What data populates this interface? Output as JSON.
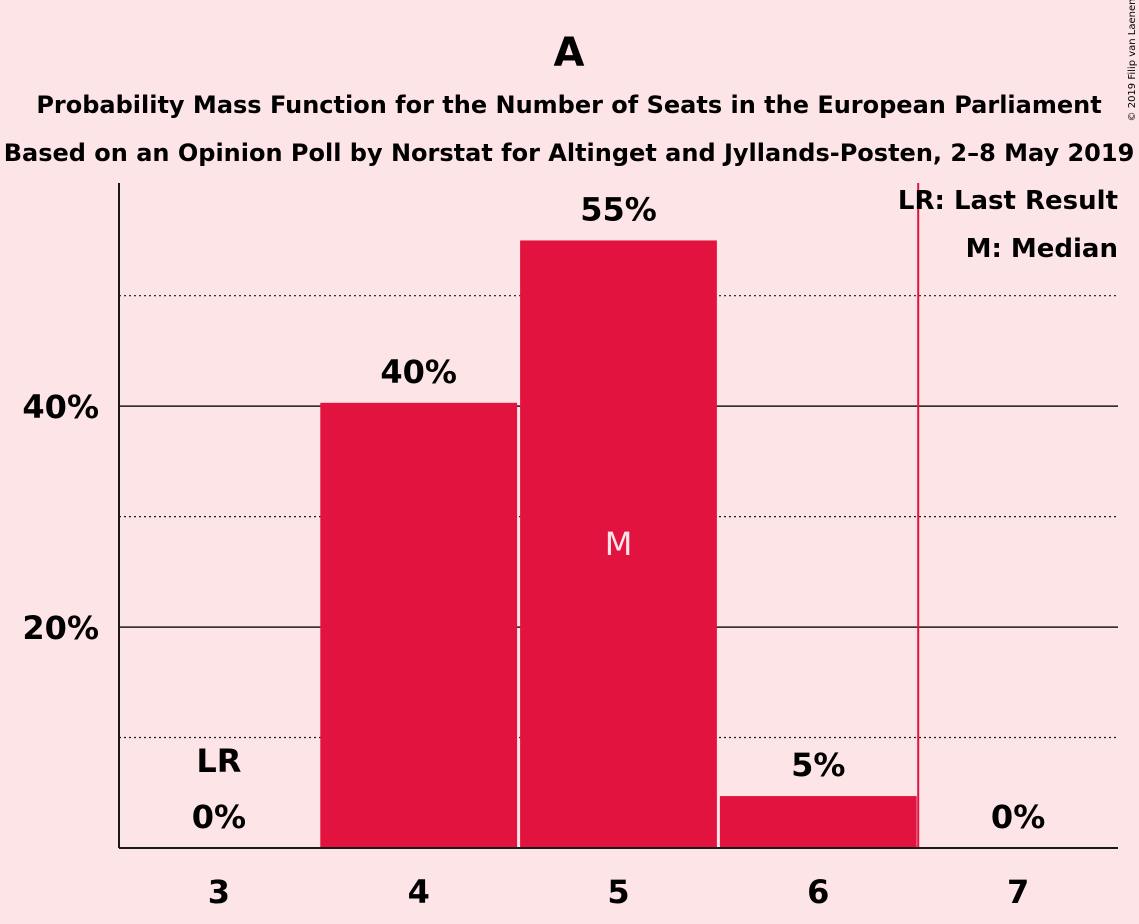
{
  "chart_data": {
    "type": "bar",
    "title": "A",
    "subtitle_lines": [
      "Probability Mass Function for the Number of Seats in the European Parliament",
      "Based on an Opinion Poll by Norstat for Altinget and Jyllands-Posten, 2–8 May 2019"
    ],
    "categories": [
      "3",
      "4",
      "5",
      "6",
      "7"
    ],
    "values": [
      0,
      40.3,
      55,
      4.7,
      0
    ],
    "value_labels": [
      "0%",
      "40%",
      "55%",
      "5%",
      "0%"
    ],
    "ylim": [
      0,
      60
    ],
    "y_ticks": [
      {
        "value": 20,
        "label": "20%"
      },
      {
        "value": 40,
        "label": "40%"
      }
    ],
    "y_minor_gridlines": [
      10,
      30,
      50
    ],
    "bar_color": "#E31340",
    "last_result": {
      "category": "3",
      "label": "LR",
      "line_after_category": "6"
    },
    "median": {
      "category": "5",
      "label": "M"
    },
    "legend": [
      "LR: Last Result",
      "M: Median"
    ],
    "legend_position": "top-right",
    "copyright": "© 2019 Filip van Laenen"
  }
}
